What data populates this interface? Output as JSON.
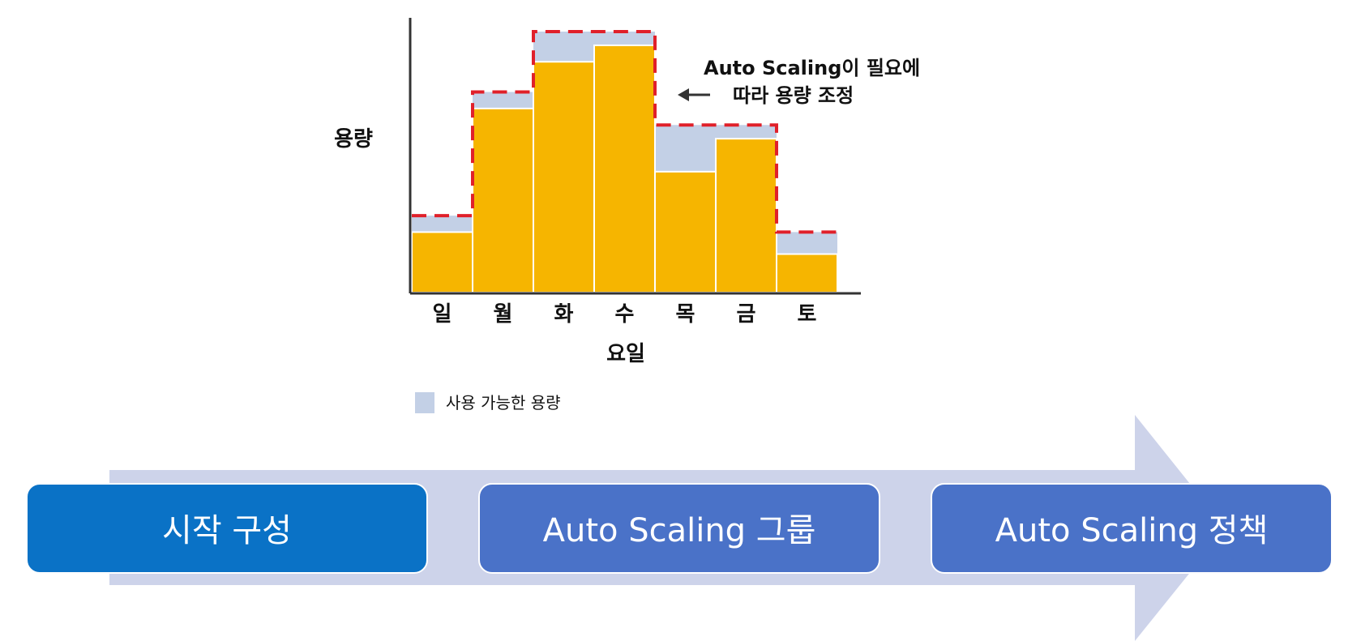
{
  "colors": {
    "bar": "#F6B500",
    "capacity": "#C3D0E6",
    "dashed_line": "#E0202A",
    "axis": "#333333",
    "arrow_band": "#CDD3EA",
    "step1": "#0A72C6",
    "step2": "#4A72C8",
    "step3": "#4A72C8"
  },
  "chart_data": {
    "type": "bar",
    "xlabel": "요일",
    "ylabel": "용량",
    "categories": [
      "일",
      "월",
      "화",
      "수",
      "목",
      "금",
      "토"
    ],
    "values": [
      22,
      67,
      84,
      90,
      44,
      56,
      14
    ],
    "capacity_values": [
      28,
      73,
      95,
      95,
      61,
      61,
      22
    ],
    "ylim": [
      0,
      100
    ],
    "annotation": {
      "lines": [
        "Auto Scaling이 필요에",
        "따라 용량 조정"
      ]
    },
    "legend": {
      "label": "사용 가능한 용량",
      "placement": "bottom-left"
    },
    "grid": false
  },
  "flow": {
    "steps": [
      {
        "label": "시작 구성"
      },
      {
        "label": "Auto Scaling 그룹"
      },
      {
        "label": "Auto Scaling 정책"
      }
    ]
  }
}
